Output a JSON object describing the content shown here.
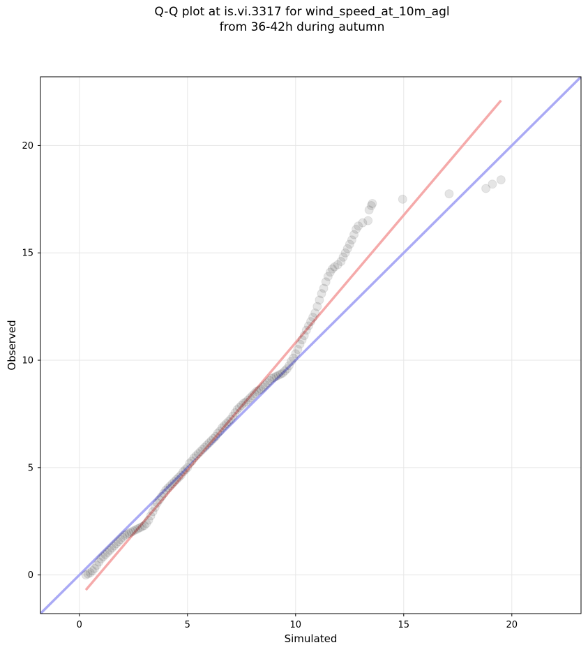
{
  "chart_data": {
    "type": "scatter",
    "title_line1": "Q-Q plot at is.vi.3317 for wind_speed_at_10m_agl",
    "title_line2": "from 36-42h during autumn",
    "xlabel": "Simulated",
    "ylabel": "Observed",
    "xlim": [
      -1.8,
      23.2
    ],
    "ylim": [
      -1.8,
      23.2
    ],
    "xticks": [
      0,
      5,
      10,
      15,
      20
    ],
    "yticks": [
      0,
      5,
      10,
      15,
      20
    ],
    "grid": true,
    "reference_lines": [
      {
        "label": "identity",
        "color": "#aaaaf5",
        "points": [
          [
            -1.8,
            -1.8
          ],
          [
            23.2,
            23.2
          ]
        ]
      },
      {
        "label": "fit",
        "color": "#f5aaaa",
        "points": [
          [
            0.3,
            -0.7
          ],
          [
            19.5,
            22.1
          ]
        ]
      }
    ],
    "points": [
      [
        0.3,
        0.0
      ],
      [
        0.4,
        0.05
      ],
      [
        0.5,
        0.1
      ],
      [
        0.6,
        0.2
      ],
      [
        0.7,
        0.3
      ],
      [
        0.8,
        0.45
      ],
      [
        0.9,
        0.6
      ],
      [
        1.0,
        0.75
      ],
      [
        1.1,
        0.85
      ],
      [
        1.2,
        0.95
      ],
      [
        1.3,
        1.05
      ],
      [
        1.4,
        1.15
      ],
      [
        1.5,
        1.25
      ],
      [
        1.6,
        1.35
      ],
      [
        1.7,
        1.45
      ],
      [
        1.8,
        1.55
      ],
      [
        1.9,
        1.65
      ],
      [
        2.0,
        1.75
      ],
      [
        2.1,
        1.85
      ],
      [
        2.2,
        1.9
      ],
      [
        2.3,
        1.95
      ],
      [
        2.4,
        2.0
      ],
      [
        2.5,
        2.05
      ],
      [
        2.6,
        2.1
      ],
      [
        2.7,
        2.15
      ],
      [
        2.8,
        2.2
      ],
      [
        2.9,
        2.25
      ],
      [
        3.0,
        2.3
      ],
      [
        3.1,
        2.4
      ],
      [
        3.2,
        2.55
      ],
      [
        3.3,
        2.75
      ],
      [
        3.4,
        2.95
      ],
      [
        3.5,
        3.15
      ],
      [
        3.6,
        3.35
      ],
      [
        3.7,
        3.5
      ],
      [
        3.8,
        3.65
      ],
      [
        3.9,
        3.8
      ],
      [
        4.0,
        3.95
      ],
      [
        4.1,
        4.05
      ],
      [
        4.2,
        4.15
      ],
      [
        4.3,
        4.25
      ],
      [
        4.4,
        4.35
      ],
      [
        4.5,
        4.45
      ],
      [
        4.6,
        4.55
      ],
      [
        4.7,
        4.65
      ],
      [
        4.8,
        4.8
      ],
      [
        4.9,
        4.9
      ],
      [
        5.0,
        5.0
      ],
      [
        5.1,
        5.2
      ],
      [
        5.2,
        5.3
      ],
      [
        5.3,
        5.45
      ],
      [
        5.4,
        5.55
      ],
      [
        5.5,
        5.65
      ],
      [
        5.6,
        5.75
      ],
      [
        5.7,
        5.85
      ],
      [
        5.8,
        5.95
      ],
      [
        5.9,
        6.05
      ],
      [
        6.0,
        6.15
      ],
      [
        6.1,
        6.25
      ],
      [
        6.2,
        6.35
      ],
      [
        6.3,
        6.45
      ],
      [
        6.4,
        6.6
      ],
      [
        6.5,
        6.7
      ],
      [
        6.6,
        6.85
      ],
      [
        6.7,
        6.95
      ],
      [
        6.8,
        7.05
      ],
      [
        6.9,
        7.15
      ],
      [
        7.0,
        7.25
      ],
      [
        7.1,
        7.4
      ],
      [
        7.2,
        7.55
      ],
      [
        7.3,
        7.7
      ],
      [
        7.4,
        7.8
      ],
      [
        7.5,
        7.9
      ],
      [
        7.6,
        8.0
      ],
      [
        7.7,
        8.05
      ],
      [
        7.8,
        8.15
      ],
      [
        7.9,
        8.25
      ],
      [
        8.0,
        8.35
      ],
      [
        8.1,
        8.45
      ],
      [
        8.2,
        8.55
      ],
      [
        8.3,
        8.6
      ],
      [
        8.4,
        8.65
      ],
      [
        8.5,
        8.75
      ],
      [
        8.6,
        8.85
      ],
      [
        8.7,
        8.95
      ],
      [
        8.8,
        9.05
      ],
      [
        8.9,
        9.15
      ],
      [
        9.0,
        9.2
      ],
      [
        9.1,
        9.25
      ],
      [
        9.2,
        9.3
      ],
      [
        9.3,
        9.35
      ],
      [
        9.4,
        9.4
      ],
      [
        9.5,
        9.5
      ],
      [
        9.6,
        9.6
      ],
      [
        9.7,
        9.75
      ],
      [
        9.8,
        9.95
      ],
      [
        9.9,
        10.1
      ],
      [
        10.0,
        10.3
      ],
      [
        10.1,
        10.5
      ],
      [
        10.2,
        10.75
      ],
      [
        10.3,
        10.95
      ],
      [
        10.4,
        11.15
      ],
      [
        10.5,
        11.4
      ],
      [
        10.6,
        11.6
      ],
      [
        10.7,
        11.8
      ],
      [
        10.8,
        12.0
      ],
      [
        10.9,
        12.2
      ],
      [
        11.0,
        12.5
      ],
      [
        11.1,
        12.8
      ],
      [
        11.2,
        13.1
      ],
      [
        11.3,
        13.35
      ],
      [
        11.4,
        13.65
      ],
      [
        11.5,
        13.9
      ],
      [
        11.6,
        14.1
      ],
      [
        11.7,
        14.25
      ],
      [
        11.8,
        14.35
      ],
      [
        11.95,
        14.45
      ],
      [
        12.1,
        14.6
      ],
      [
        12.2,
        14.8
      ],
      [
        12.3,
        15.0
      ],
      [
        12.4,
        15.2
      ],
      [
        12.5,
        15.4
      ],
      [
        12.6,
        15.6
      ],
      [
        12.7,
        15.85
      ],
      [
        12.8,
        16.1
      ],
      [
        12.9,
        16.25
      ],
      [
        13.1,
        16.4
      ],
      [
        13.35,
        16.5
      ],
      [
        13.4,
        17.0
      ],
      [
        13.5,
        17.2
      ],
      [
        13.55,
        17.3
      ],
      [
        14.95,
        17.5
      ],
      [
        17.1,
        17.75
      ],
      [
        18.8,
        18.0
      ],
      [
        19.1,
        18.2
      ],
      [
        19.5,
        18.4
      ]
    ]
  }
}
